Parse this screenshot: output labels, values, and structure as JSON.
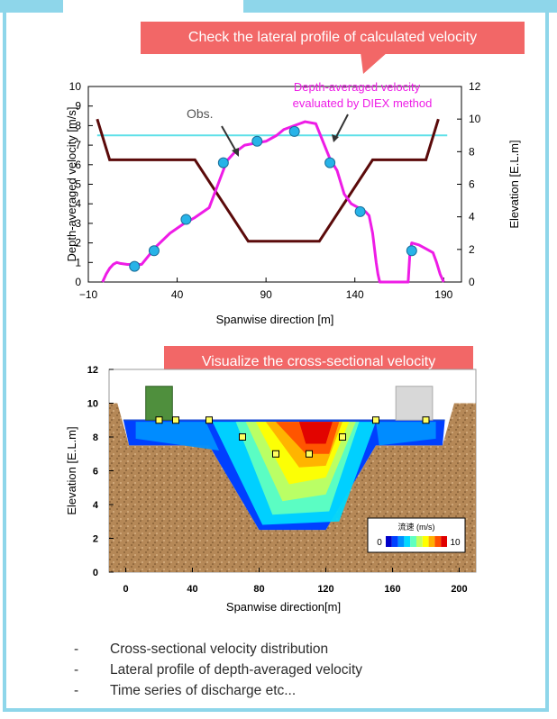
{
  "callouts": {
    "top": "Check the lateral profile of calculated velocity",
    "bottom": "Visualize the cross-sectional velocity"
  },
  "bullets": [
    {
      "dash": "-",
      "text": "Cross-sectional velocity distribution"
    },
    {
      "dash": "-",
      "text": "Lateral profile of depth-averaged velocity"
    },
    {
      "dash": "-",
      "text": "Time series of discharge   etc..."
    }
  ],
  "chart_data": [
    {
      "type": "line",
      "xlabel": "Spanwise direction [m]",
      "ylabel": "Depth-averaged velocity [m/s]",
      "y2label": "Elevation [E.L.m]",
      "xlim": [
        -10,
        200
      ],
      "ylim": [
        0,
        10
      ],
      "y2lim": [
        0,
        12
      ],
      "xticks": [
        "−10",
        "40",
        "90",
        "140",
        "190"
      ],
      "yticks": [
        "0",
        "1",
        "2",
        "3",
        "4",
        "5",
        "6",
        "7",
        "8",
        "9",
        "10"
      ],
      "y2ticks": [
        "0",
        "2",
        "4",
        "6",
        "8",
        "10",
        "12"
      ],
      "annotations": {
        "obs": "Obs.",
        "diex_line1": "Depth-averaged velocity",
        "diex_line2": "evaluated by DIEX method"
      },
      "colors": {
        "velocity": "#ee1ce6",
        "bed": "#5b0a0a",
        "water": "#5ee0e8",
        "obs": "#27b3e8"
      },
      "water_level": 9,
      "bed": {
        "x": [
          -5,
          2,
          50,
          80,
          120,
          150,
          180,
          187
        ],
        "y": [
          10,
          7.5,
          7.5,
          2.5,
          2.5,
          7.5,
          7.5,
          10
        ]
      },
      "velocity": {
        "x": [
          -2,
          0,
          2,
          4,
          6,
          8,
          12,
          20,
          28,
          36,
          44,
          50,
          58,
          63,
          68,
          72,
          78,
          84,
          90,
          96,
          100,
          106,
          112,
          118,
          122,
          126,
          130,
          134,
          138,
          142,
          146,
          148,
          150,
          152,
          153,
          154,
          160,
          166,
          170,
          171,
          172,
          176,
          180,
          184,
          186,
          188,
          190
        ],
        "y": [
          0,
          0.4,
          0.7,
          0.9,
          1.0,
          0.95,
          0.9,
          0.9,
          1.8,
          2.5,
          3.0,
          3.3,
          3.8,
          5.0,
          6.2,
          6.6,
          7.0,
          7.1,
          7.2,
          7.5,
          7.8,
          8.0,
          8.2,
          8.1,
          7.2,
          6.3,
          5.7,
          4.5,
          4.0,
          3.8,
          3.6,
          3.4,
          2.5,
          1.0,
          0.4,
          0,
          0,
          0,
          0,
          1.5,
          2.0,
          1.9,
          1.7,
          1.5,
          1.0,
          0.4,
          0
        ]
      },
      "observed": {
        "x": [
          16,
          27,
          45,
          66,
          85,
          106,
          126,
          143,
          172
        ],
        "y": [
          0.8,
          1.6,
          3.2,
          6.1,
          7.2,
          7.7,
          6.1,
          3.6,
          1.6
        ]
      }
    },
    {
      "type": "heatmap",
      "xlabel": "Spanwise direction[m]",
      "ylabel": "Elevation [E.L.m]",
      "xlim": [
        -10,
        210
      ],
      "ylim": [
        0,
        12
      ],
      "xticks": [
        "0",
        "40",
        "80",
        "120",
        "160",
        "200"
      ],
      "yticks": [
        "0",
        "2",
        "4",
        "6",
        "8",
        "10",
        "12"
      ],
      "legend_title": "流速 (m/s)",
      "legend_min": "0",
      "legend_max": "10",
      "colormap": [
        "#0000c8",
        "#0040ff",
        "#0090ff",
        "#00d8ff",
        "#60ffc0",
        "#c0ff60",
        "#ffff00",
        "#ffb000",
        "#ff5000",
        "#e00000"
      ],
      "terrain_color": "#b58857",
      "water_color": "#9ad6ee",
      "water_level": 9,
      "bed": {
        "x": [
          -10,
          -5,
          2,
          50,
          80,
          120,
          150,
          190,
          197,
          210
        ],
        "y": [
          10,
          10,
          7.5,
          7.5,
          2.5,
          2.5,
          7.5,
          7.5,
          10,
          10
        ]
      },
      "markers": {
        "x": [
          20,
          30,
          50,
          70,
          90,
          110,
          130,
          150,
          180
        ],
        "y": [
          9,
          9,
          9,
          8,
          7,
          7,
          8,
          9,
          9
        ]
      }
    }
  ]
}
